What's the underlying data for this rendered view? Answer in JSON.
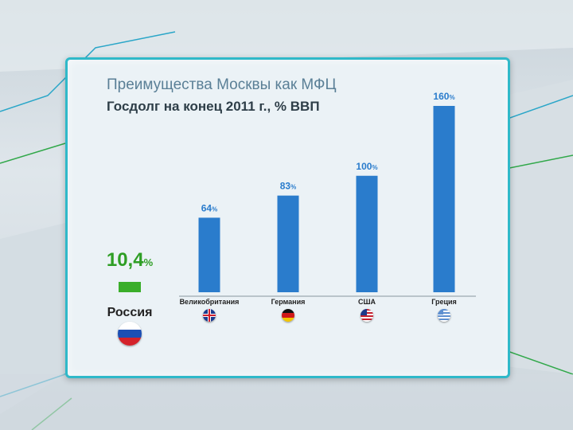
{
  "header": {
    "title": "Преимущества Москвы как МФЦ",
    "subtitle": "Госдолг на конец  2011 г., % ВВП"
  },
  "colors": {
    "bar": "#2a7ccc",
    "highlight": "#3aae2a",
    "frame": "#2fb9c9"
  },
  "chart_data": {
    "type": "bar",
    "title": "Госдолг на конец  2011 г., % ВВП",
    "categories": [
      "Россия",
      "Великобритания",
      "Германия",
      "США",
      "Греция"
    ],
    "values": [
      10.4,
      64,
      83,
      100,
      160
    ],
    "value_labels": [
      "10,4",
      "64",
      "83",
      "100",
      "160"
    ],
    "unit": "%",
    "ylim": [
      0,
      160
    ],
    "highlight_category": "Россия",
    "flags": [
      "russia-flag-icon",
      "uk-flag-icon",
      "germany-flag-icon",
      "usa-flag-icon",
      "greece-flag-icon"
    ]
  }
}
